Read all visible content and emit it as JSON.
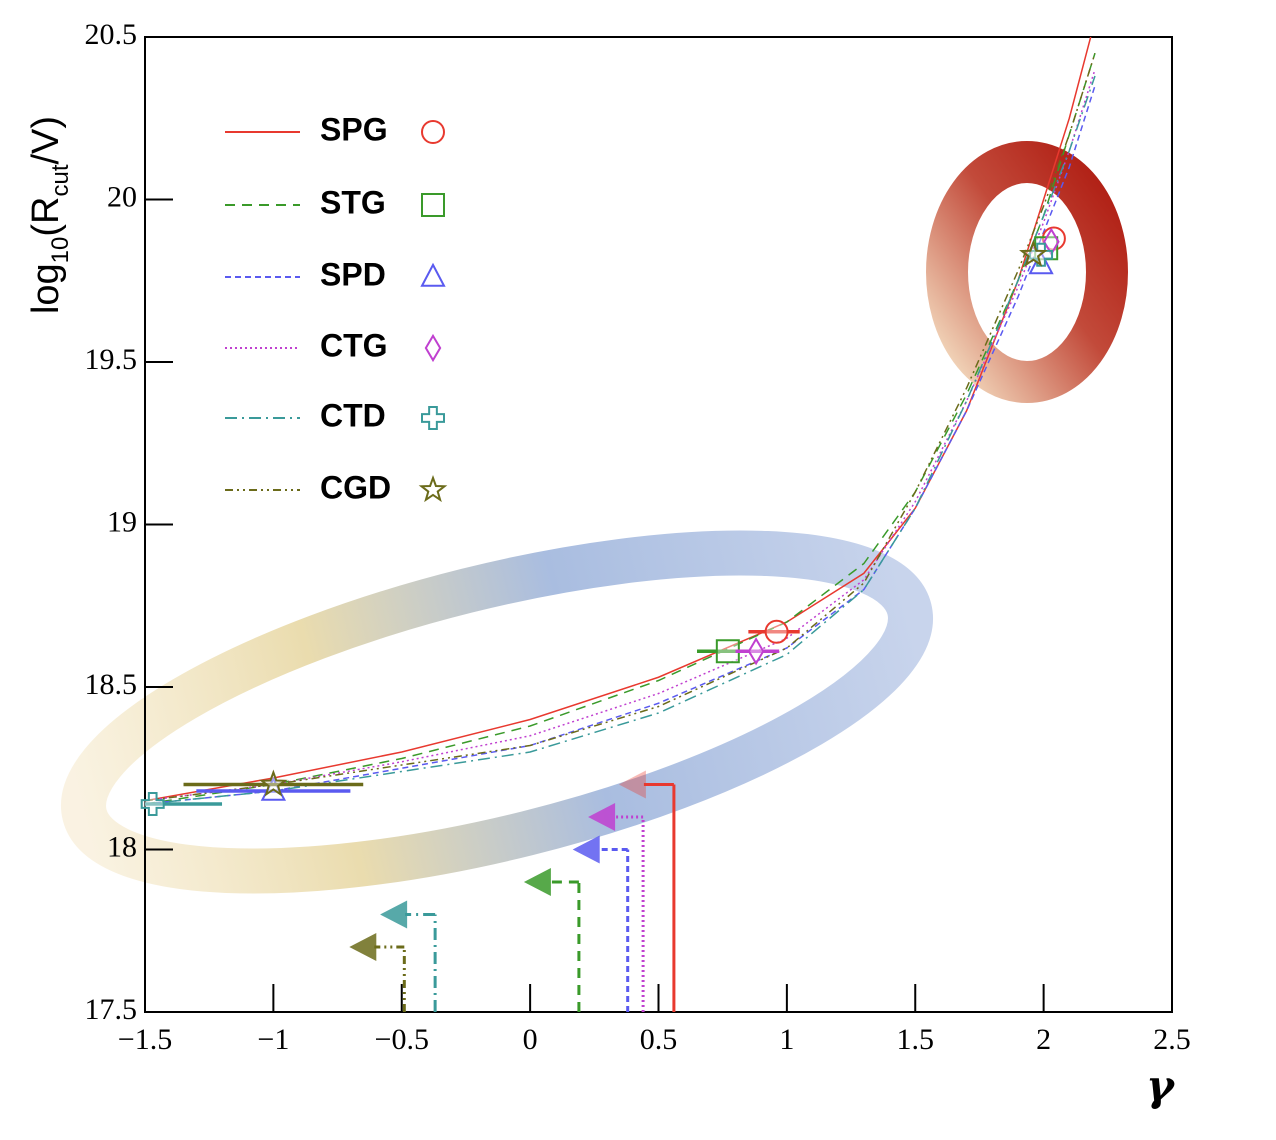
{
  "chart_data": {
    "type": "line",
    "x_label": "γ",
    "y_label": [
      "log",
      "10",
      "(R",
      "cut",
      "/V)"
    ],
    "xlim": [
      -1.5,
      2.5
    ],
    "ylim": [
      17.5,
      20.5
    ],
    "xticks": [
      {
        "value": -1.5,
        "label": "−1.5"
      },
      {
        "value": -1,
        "label": "−1"
      },
      {
        "value": -0.5,
        "label": "−0.5"
      },
      0,
      0.5,
      1,
      1.5,
      2,
      2.5
    ],
    "yticks": [
      17.5,
      18,
      18.5,
      19,
      19.5,
      20,
      20.5
    ],
    "legend": "top-left",
    "x": [
      -1.5,
      -1,
      -0.5,
      0,
      0.5,
      1,
      1.3,
      1.5,
      1.7,
      1.9,
      2.0,
      2.1,
      2.2
    ],
    "series": [
      {
        "name": "SPG",
        "color": "#e8392f",
        "dash": "solid",
        "marker": "circle",
        "values": [
          18.15,
          18.22,
          18.3,
          18.4,
          18.53,
          18.7,
          18.85,
          19.05,
          19.35,
          19.75,
          20.0,
          20.25,
          20.55
        ],
        "points": {
          "x": [
            0.96,
            2.04
          ],
          "values": [
            18.67,
            19.88
          ]
        },
        "error_bar": {
          "x": [
            0.85,
            1.05
          ],
          "y": 18.67
        },
        "limit": {
          "x": 0.56,
          "y": 18.2
        }
      },
      {
        "name": "STG",
        "color": "#3a9a2a",
        "dash": "dashed",
        "marker": "square",
        "values": [
          18.14,
          18.2,
          18.28,
          18.38,
          18.52,
          18.7,
          18.88,
          19.1,
          19.4,
          19.75,
          19.95,
          20.2,
          20.45
        ],
        "points": {
          "x": [
            0.77,
            2.01
          ],
          "values": [
            18.61,
            19.85
          ]
        },
        "error_bar": {
          "x": [
            0.65,
            0.85
          ],
          "y": 18.61
        },
        "limit": {
          "x": 0.19,
          "y": 17.9
        }
      },
      {
        "name": "SPD",
        "color": "#5a5af0",
        "dash": "short",
        "marker": "triangle",
        "values": [
          18.14,
          18.18,
          18.25,
          18.32,
          18.45,
          18.62,
          18.8,
          19.05,
          19.35,
          19.7,
          19.9,
          20.1,
          20.35
        ],
        "points": {
          "x": [
            -1.0,
            1.99
          ],
          "values": [
            18.18,
            19.8
          ]
        },
        "error_bar": {
          "x": [
            -1.3,
            -0.7
          ],
          "y": 18.18
        },
        "limit": {
          "x": 0.38,
          "y": 18.0
        }
      },
      {
        "name": "CTG",
        "color": "#c040d0",
        "dash": "dotted",
        "marker": "diamond",
        "values": [
          18.15,
          18.2,
          18.27,
          18.35,
          18.48,
          18.65,
          18.83,
          19.07,
          19.38,
          19.73,
          19.93,
          20.15,
          20.4
        ],
        "points": {
          "x": [
            0.88,
            2.03
          ],
          "values": [
            18.61,
            19.87
          ]
        },
        "error_bar": {
          "x": [
            0.8,
            0.97
          ],
          "y": 18.61
        },
        "limit": {
          "x": 0.44,
          "y": 18.1
        }
      },
      {
        "name": "CTD",
        "color": "#3a9a9a",
        "dash": "dashdot",
        "marker": "cross",
        "values": [
          18.14,
          18.18,
          18.24,
          18.3,
          18.42,
          18.6,
          18.8,
          19.05,
          19.38,
          19.75,
          19.95,
          20.15,
          20.38
        ],
        "points": {
          "x": [
            -1.47,
            1.99
          ],
          "values": [
            18.14,
            19.83
          ]
        },
        "error_bar": {
          "x": [
            -1.5,
            -1.2
          ],
          "y": 18.14
        },
        "limit": {
          "x": -0.37,
          "y": 17.8
        }
      },
      {
        "name": "CGD",
        "color": "#6b6b1a",
        "dash": "dashdotdot",
        "marker": "star",
        "values": [
          18.15,
          18.2,
          18.26,
          18.32,
          18.44,
          18.62,
          18.82,
          19.1,
          19.42,
          19.78,
          19.98,
          20.2,
          20.45
        ],
        "points": {
          "x": [
            -1.0,
            1.96
          ],
          "values": [
            18.2,
            19.83
          ]
        },
        "error_bar": {
          "x": [
            -1.35,
            -0.65
          ],
          "y": 18.2
        },
        "limit": {
          "x": -0.49,
          "y": 17.7
        }
      }
    ]
  }
}
